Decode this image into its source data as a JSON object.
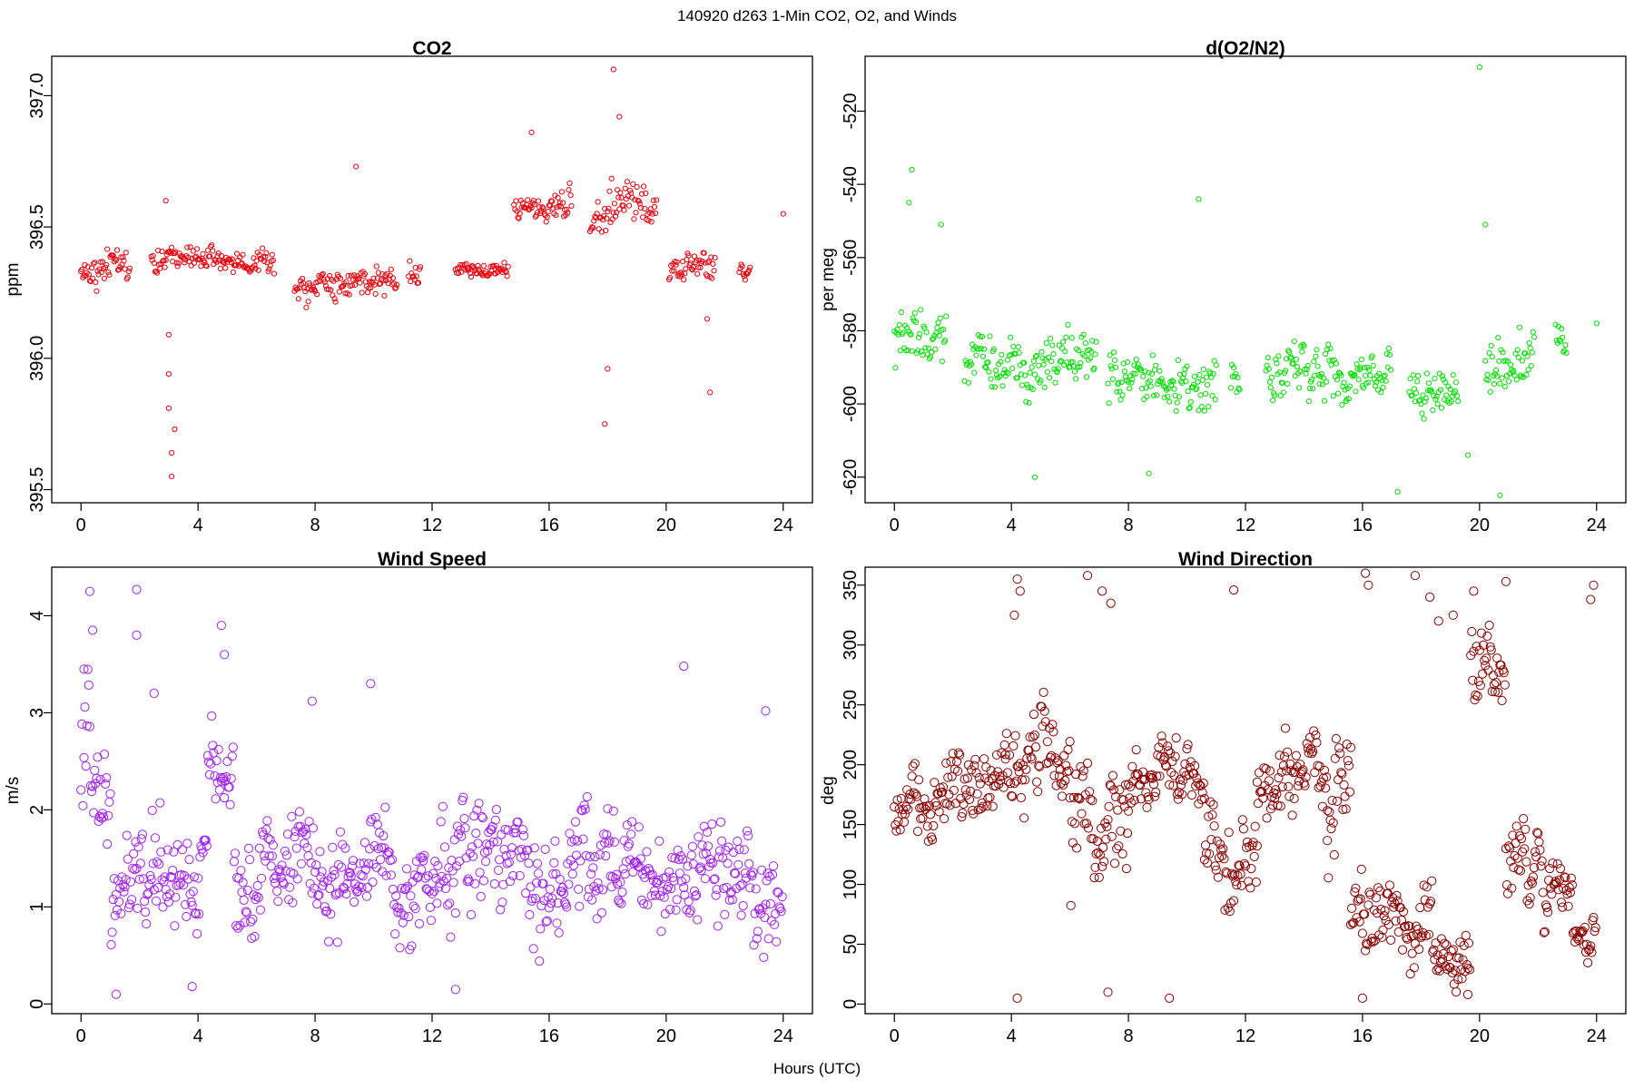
{
  "figure": {
    "suptitle": "140920   d263   1-Min CO2, O2, and Winds",
    "xlabel": "Hours (UTC)"
  },
  "chart_data": [
    {
      "type": "scatter",
      "title": "CO2",
      "xlabel": "",
      "ylabel": "ppm",
      "xlim": [
        -1,
        25
      ],
      "ylim": [
        395.45,
        397.15
      ],
      "xticks": [
        0,
        4,
        8,
        12,
        16,
        20,
        24
      ],
      "yticks": [
        395.5,
        396.0,
        396.5,
        397.0
      ],
      "ytick_labels": [
        "395.5",
        "396.0",
        "396.5",
        "397.0"
      ],
      "color": "#e8000b",
      "grid": false,
      "segments": [
        {
          "x0": 0.0,
          "x1": 1.7,
          "mean": 396.33,
          "spread": 0.08
        },
        {
          "x0": 2.4,
          "x1": 6.6,
          "mean": 396.38,
          "spread": 0.06
        },
        {
          "x0": 7.3,
          "x1": 10.8,
          "mean": 396.29,
          "spread": 0.08
        },
        {
          "x0": 11.2,
          "x1": 11.6,
          "mean": 396.32,
          "spread": 0.07
        },
        {
          "x0": 12.8,
          "x1": 14.6,
          "mean": 396.33,
          "spread": 0.04
        },
        {
          "x0": 14.8,
          "x1": 16.8,
          "mean": 396.58,
          "spread": 0.08
        },
        {
          "x0": 17.4,
          "x1": 19.7,
          "mean": 396.55,
          "spread": 0.12
        },
        {
          "x0": 20.1,
          "x1": 21.7,
          "mean": 396.35,
          "spread": 0.07
        },
        {
          "x0": 22.5,
          "x1": 22.9,
          "mean": 396.33,
          "spread": 0.04
        },
        {
          "x0": 24.0,
          "x1": 24.0,
          "mean": 396.55,
          "spread": 0.0
        }
      ],
      "extra_points": [
        [
          3.0,
          396.09
        ],
        [
          3.0,
          395.94
        ],
        [
          3.0,
          395.81
        ],
        [
          3.1,
          395.64
        ],
        [
          3.1,
          395.55
        ],
        [
          3.2,
          395.73
        ],
        [
          17.9,
          395.75
        ],
        [
          18.0,
          395.96
        ],
        [
          18.2,
          397.1
        ],
        [
          18.4,
          396.92
        ],
        [
          21.5,
          395.87
        ],
        [
          21.4,
          396.15
        ],
        [
          15.4,
          396.86
        ],
        [
          9.4,
          396.73
        ],
        [
          2.9,
          396.6
        ]
      ]
    },
    {
      "type": "scatter",
      "title": "d(O2/N2)",
      "xlabel": "",
      "ylabel": "per meg",
      "xlim": [
        -1,
        25
      ],
      "ylim": [
        -627,
        -505
      ],
      "xticks": [
        0,
        4,
        8,
        12,
        16,
        20,
        24
      ],
      "yticks": [
        -620,
        -600,
        -580,
        -560,
        -540,
        -520
      ],
      "ytick_labels": [
        "-620",
        "-600",
        "-580",
        "-560",
        "-540",
        "-520"
      ],
      "color": "#00e000",
      "grid": false,
      "segments": [
        {
          "x0": 0.0,
          "x1": 1.8,
          "mean": -583,
          "spread": 10
        },
        {
          "x0": 2.4,
          "x1": 6.9,
          "mean": -589,
          "spread": 10
        },
        {
          "x0": 7.3,
          "x1": 11.0,
          "mean": -594,
          "spread": 9
        },
        {
          "x0": 11.5,
          "x1": 11.8,
          "mean": -592,
          "spread": 8
        },
        {
          "x0": 12.7,
          "x1": 17.0,
          "mean": -591,
          "spread": 10
        },
        {
          "x0": 17.6,
          "x1": 19.3,
          "mean": -593,
          "spread": 9
        },
        {
          "x0": 20.2,
          "x1": 21.9,
          "mean": -586,
          "spread": 10
        },
        {
          "x0": 22.6,
          "x1": 23.0,
          "mean": -583,
          "spread": 8
        },
        {
          "x0": 24.0,
          "x1": 24.0,
          "mean": -578,
          "spread": 0
        }
      ],
      "extra_points": [
        [
          0.6,
          -536
        ],
        [
          0.5,
          -545
        ],
        [
          1.6,
          -551
        ],
        [
          10.4,
          -544
        ],
        [
          20.0,
          -508
        ],
        [
          20.2,
          -551
        ],
        [
          17.2,
          -624
        ],
        [
          20.7,
          -625
        ],
        [
          4.8,
          -620
        ],
        [
          8.7,
          -619
        ],
        [
          19.6,
          -614
        ]
      ]
    },
    {
      "type": "scatter",
      "title": "Wind Speed",
      "xlabel": "",
      "ylabel": "m/s",
      "xlim": [
        -1,
        25
      ],
      "ylim": [
        -0.1,
        4.5
      ],
      "xticks": [
        0,
        4,
        8,
        12,
        16,
        20,
        24
      ],
      "yticks": [
        0,
        1,
        2,
        3,
        4
      ],
      "ytick_labels": [
        "0",
        "1",
        "2",
        "3",
        "4"
      ],
      "color": "#a020f0",
      "grid": false,
      "segments": [
        {
          "x0": 0.0,
          "x1": 24.0,
          "mean": 1.3,
          "spread": 0.7
        }
      ],
      "extra_points": [
        [
          0.3,
          4.25
        ],
        [
          1.9,
          4.27
        ],
        [
          0.4,
          3.85
        ],
        [
          1.9,
          3.8
        ],
        [
          4.8,
          3.9
        ],
        [
          4.9,
          3.6
        ],
        [
          0.1,
          3.45
        ],
        [
          20.6,
          3.48
        ],
        [
          9.9,
          3.3
        ],
        [
          7.9,
          3.12
        ],
        [
          2.5,
          3.2
        ],
        [
          23.4,
          3.02
        ],
        [
          1.2,
          0.1
        ],
        [
          12.8,
          0.15
        ],
        [
          3.8,
          0.18
        ]
      ]
    },
    {
      "type": "scatter",
      "title": "Wind Direction",
      "xlabel": "",
      "ylabel": "deg",
      "xlim": [
        -1,
        25
      ],
      "ylim": [
        -8,
        365
      ],
      "xticks": [
        0,
        4,
        8,
        12,
        16,
        20,
        24
      ],
      "yticks": [
        0,
        50,
        100,
        150,
        200,
        250,
        300,
        350
      ],
      "ytick_labels": [
        "0",
        "50",
        "100",
        "150",
        "200",
        "250",
        "300",
        "350"
      ],
      "color": "#8b0000",
      "grid": false,
      "segments": [
        {
          "x0": 0.0,
          "x1": 1.4,
          "mean": 150,
          "spread": 35
        },
        {
          "x0": 1.4,
          "x1": 3.8,
          "mean": 175,
          "spread": 40
        },
        {
          "x0": 3.8,
          "x1": 6.0,
          "mean": 195,
          "spread": 50
        },
        {
          "x0": 6.0,
          "x1": 8.0,
          "mean": 150,
          "spread": 60
        },
        {
          "x0": 8.0,
          "x1": 10.6,
          "mean": 185,
          "spread": 35
        },
        {
          "x0": 10.6,
          "x1": 12.4,
          "mean": 120,
          "spread": 50
        },
        {
          "x0": 12.4,
          "x1": 14.8,
          "mean": 190,
          "spread": 40
        },
        {
          "x0": 14.8,
          "x1": 15.6,
          "mean": 150,
          "spread": 80
        },
        {
          "x0": 15.6,
          "x1": 18.4,
          "mean": 70,
          "spread": 40
        },
        {
          "x0": 18.4,
          "x1": 19.7,
          "mean": 30,
          "spread": 30
        },
        {
          "x0": 19.7,
          "x1": 20.9,
          "mean": 280,
          "spread": 50
        },
        {
          "x0": 20.9,
          "x1": 22.2,
          "mean": 120,
          "spread": 50
        },
        {
          "x0": 22.2,
          "x1": 23.2,
          "mean": 90,
          "spread": 40
        },
        {
          "x0": 23.2,
          "x1": 24.0,
          "mean": 60,
          "spread": 30
        }
      ],
      "extra_points": [
        [
          4.2,
          355
        ],
        [
          4.3,
          345
        ],
        [
          4.1,
          325
        ],
        [
          6.6,
          358
        ],
        [
          7.1,
          345
        ],
        [
          7.4,
          335
        ],
        [
          11.6,
          346
        ],
        [
          16.1,
          360
        ],
        [
          16.2,
          350
        ],
        [
          17.8,
          358
        ],
        [
          18.3,
          340
        ],
        [
          18.6,
          320
        ],
        [
          19.1,
          325
        ],
        [
          19.8,
          345
        ],
        [
          20.9,
          353
        ],
        [
          23.9,
          350
        ],
        [
          23.8,
          338
        ],
        [
          4.2,
          5
        ],
        [
          7.3,
          10
        ],
        [
          9.4,
          5
        ],
        [
          16.0,
          5
        ],
        [
          19.6,
          8
        ]
      ]
    }
  ]
}
